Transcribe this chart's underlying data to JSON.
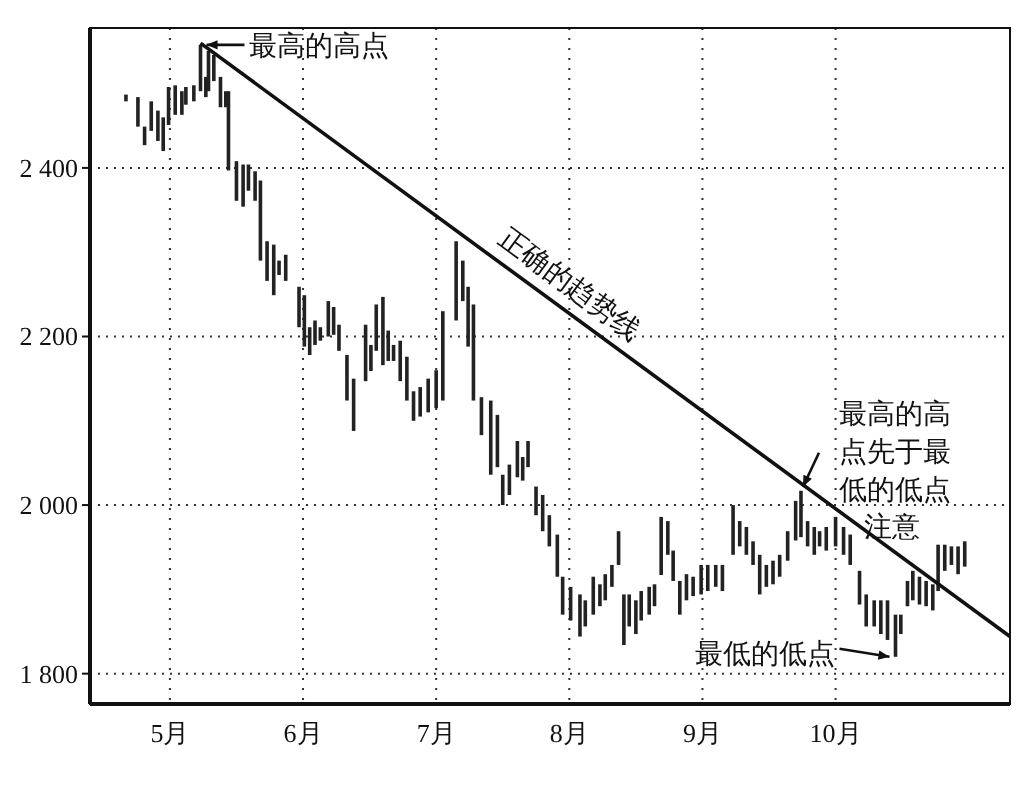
{
  "chart_data": {
    "type": "bar",
    "xlim": [
      4.4,
      11.31
    ],
    "ylim": [
      1764,
      2566
    ],
    "xticks": [
      {
        "value": 5,
        "label": "5月"
      },
      {
        "value": 6,
        "label": "6月"
      },
      {
        "value": 7,
        "label": "7月"
      },
      {
        "value": 8,
        "label": "8月"
      },
      {
        "value": 9,
        "label": "9月"
      },
      {
        "value": 10,
        "label": "10月"
      }
    ],
    "yticks": [
      {
        "value": 1800,
        "label": "1 800"
      },
      {
        "value": 2000,
        "label": "2 000"
      },
      {
        "value": 2200,
        "label": "2 200"
      },
      {
        "value": 2400,
        "label": "2 400"
      }
    ],
    "grid": true,
    "series": [
      {
        "color": "#222222",
        "x": [
          4.67,
          4.76,
          4.81,
          4.86,
          4.91,
          4.95,
          4.99,
          5.04,
          5.09,
          5.12,
          5.18,
          5.23,
          5.27,
          5.29,
          5.33,
          5.38,
          5.42,
          5.44,
          5.5,
          5.55,
          5.59,
          5.64,
          5.68,
          5.73,
          5.78,
          5.82,
          5.87,
          5.97,
          6.01,
          6.05,
          6.09,
          6.13,
          6.19,
          6.23,
          6.27,
          6.33,
          6.38,
          6.47,
          6.51,
          6.55,
          6.6,
          6.64,
          6.68,
          6.73,
          6.78,
          6.83,
          6.88,
          6.94,
          7.0,
          7.05,
          7.15,
          7.2,
          7.24,
          7.28,
          7.34,
          7.41,
          7.46,
          7.5,
          7.55,
          7.61,
          7.65,
          7.69,
          7.75,
          7.8,
          7.85,
          7.91,
          7.95,
          8.01,
          8.08,
          8.12,
          8.18,
          8.23,
          8.27,
          8.32,
          8.37,
          8.41,
          8.45,
          8.5,
          8.54,
          8.6,
          8.64,
          8.69,
          8.74,
          8.78,
          8.83,
          8.88,
          8.93,
          8.99,
          9.04,
          9.1,
          9.15,
          9.23,
          9.28,
          9.33,
          9.38,
          9.43,
          9.48,
          9.53,
          9.58,
          9.64,
          9.7,
          9.74,
          9.79,
          9.84,
          9.88,
          9.93,
          10.0,
          10.06,
          10.11,
          10.18,
          10.23,
          10.29,
          10.34,
          10.39,
          10.45,
          10.49,
          10.54,
          10.58,
          10.63,
          10.68,
          10.73,
          10.77,
          10.82,
          10.87,
          10.92,
          10.97
        ],
        "base": [
          2479,
          2449,
          2427,
          2444,
          2432,
          2420,
          2451,
          2463,
          2463,
          2475,
          2479,
          2491,
          2484,
          2491,
          2503,
          2472,
          2472,
          2397,
          2361,
          2354,
          2373,
          2361,
          2290,
          2266,
          2249,
          2273,
          2266,
          2211,
          2188,
          2178,
          2190,
          2195,
          2200,
          2202,
          2183,
          2124,
          2088,
          2147,
          2159,
          2183,
          2166,
          2171,
          2171,
          2147,
          2124,
          2100,
          2105,
          2110,
          2115,
          2124,
          2219,
          2242,
          2188,
          2124,
          2083,
          2036,
          2045,
          2000,
          2012,
          2033,
          2029,
          2045,
          1988,
          1969,
          1951,
          1915,
          1870,
          1863,
          1844,
          1856,
          1870,
          1880,
          1887,
          1903,
          1929,
          1834,
          1856,
          1847,
          1863,
          1870,
          1880,
          1917,
          1941,
          1910,
          1870,
          1887,
          1892,
          1894,
          1898,
          1903,
          1898,
          1941,
          1951,
          1941,
          1929,
          1894,
          1903,
          1906,
          1915,
          1934,
          1958,
          1962,
          1951,
          1941,
          1951,
          1946,
          1951,
          1941,
          1929,
          1882,
          1856,
          1856,
          1847,
          1840,
          1820,
          1847,
          1880,
          1887,
          1882,
          1880,
          1875,
          1898,
          1922,
          1929,
          1918,
          1927
        ],
        "values": [
          8,
          35,
          22,
          35,
          36,
          40,
          45,
          35,
          28,
          21,
          19,
          55,
          24,
          48,
          31,
          36,
          19,
          94,
          47,
          50,
          31,
          35,
          95,
          47,
          60,
          17,
          31,
          48,
          61,
          33,
          29,
          16,
          42,
          33,
          31,
          54,
          62,
          67,
          31,
          55,
          81,
          36,
          19,
          48,
          52,
          35,
          35,
          40,
          45,
          106,
          94,
          48,
          71,
          114,
          45,
          88,
          62,
          36,
          36,
          43,
          28,
          31,
          34,
          43,
          37,
          50,
          45,
          40,
          50,
          31,
          45,
          26,
          31,
          26,
          40,
          60,
          38,
          40,
          35,
          33,
          26,
          69,
          40,
          36,
          40,
          31,
          23,
          35,
          31,
          26,
          31,
          59,
          30,
          33,
          28,
          47,
          26,
          28,
          26,
          35,
          47,
          55,
          30,
          33,
          18,
          28,
          35,
          33,
          36,
          40,
          38,
          31,
          40,
          47,
          50,
          23,
          30,
          35,
          33,
          30,
          31,
          55,
          31,
          22,
          33,
          30
        ]
      },
      {
        "type": "line",
        "color": "#111111",
        "x": [
          5.23,
          11.31
        ],
        "values": [
          2548,
          1844
        ]
      }
    ],
    "annotations": [
      {
        "text": "最高的高点",
        "x": 5.23,
        "y": 2546
      },
      {
        "text": "正确的趋势线",
        "x": 7.9,
        "y": 2240
      },
      {
        "text": "最高的高点先于最低的低点",
        "x": 9.74,
        "y": 2017
      },
      {
        "text": "最低的低点",
        "x": 10.45,
        "y": 1820
      },
      "注意"
    ]
  }
}
